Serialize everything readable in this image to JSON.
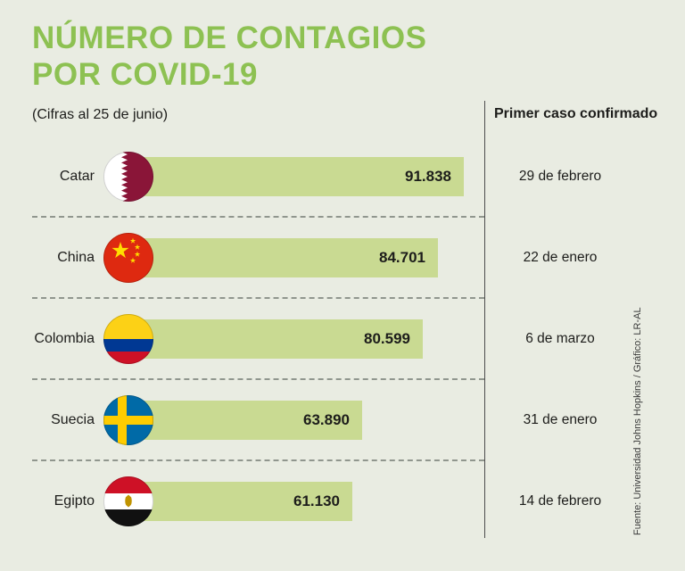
{
  "header": {
    "title_line1": "NÚMERO DE CONTAGIOS",
    "title_line2": "POR COVID-19",
    "subtitle": "(Cifras al 25 de junio)",
    "right_column_header": "Primer caso confirmado"
  },
  "chart_data": {
    "type": "bar",
    "orientation": "horizontal",
    "title": "Número de contagios por COVID-19",
    "subtitle": "(Cifras al 25 de junio)",
    "categories": [
      "Catar",
      "China",
      "Colombia",
      "Suecia",
      "Egipto"
    ],
    "values": [
      91838,
      84701,
      80599,
      63890,
      61130
    ],
    "value_labels": [
      "91.838",
      "84.701",
      "80.599",
      "63.890",
      "61.130"
    ],
    "first_case_column_header": "Primer caso confirmado",
    "first_case_dates": [
      "29 de febrero",
      "22 de enero",
      "6 de marzo",
      "31 de enero",
      "14 de febrero"
    ],
    "xlim": [
      0,
      91838
    ],
    "grid": false,
    "legend": false,
    "bar_color": "#c9da92"
  },
  "rows": [
    {
      "country": "Catar",
      "value_label": "91.838",
      "date": "29 de febrero",
      "flag_icon": "qatar-flag-icon"
    },
    {
      "country": "China",
      "value_label": "84.701",
      "date": "22 de enero",
      "flag_icon": "china-flag-icon"
    },
    {
      "country": "Colombia",
      "value_label": "80.599",
      "date": "6 de marzo",
      "flag_icon": "colombia-flag-icon"
    },
    {
      "country": "Suecia",
      "value_label": "63.890",
      "date": "31 de enero",
      "flag_icon": "sweden-flag-icon"
    },
    {
      "country": "Egipto",
      "value_label": "61.130",
      "date": "14 de febrero",
      "flag_icon": "egypt-flag-icon"
    }
  ],
  "source": "Fuente: Universidad Johns Hopkins / Gráfico: LR-AL",
  "colors": {
    "background": "#e9ece2",
    "title_green": "#8dc152",
    "bar_green": "#c9da92",
    "text": "#1d1d1b"
  }
}
